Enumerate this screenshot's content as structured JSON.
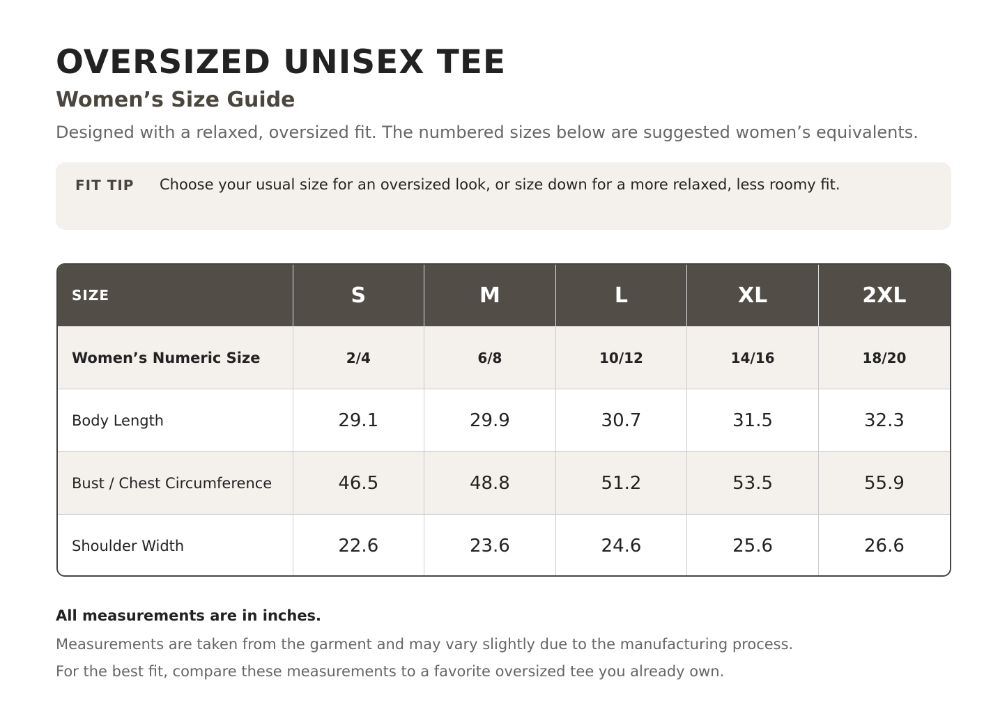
{
  "header": {
    "title": "OVERSIZED UNISEX TEE",
    "subtitle": "Women’s Size Guide",
    "description": "Designed with a relaxed, oversized fit. The numbered sizes below are suggested women’s equivalents."
  },
  "fit_tip": {
    "label": "FIT TIP",
    "text": "Choose your usual size for an oversized look, or size down for a more relaxed, less roomy fit."
  },
  "table": {
    "columns": [
      "SIZE",
      "S",
      "M",
      "L",
      "XL",
      "2XL"
    ],
    "rows": [
      [
        "Women’s Numeric Size",
        "2/4",
        "6/8",
        "10/12",
        "14/16",
        "18/20"
      ],
      [
        "Body Length",
        29.1,
        29.9,
        30.7,
        31.5,
        32.3
      ],
      [
        "Bust / Chest Circumference",
        46.5,
        48.8,
        51.2,
        53.5,
        55.9
      ],
      [
        "Shoulder Width",
        22.6,
        23.6,
        24.6,
        25.6,
        26.6
      ]
    ]
  },
  "notes": {
    "emphasis": "All measurements are in inches.",
    "lines": [
      "Measurements are taken from the garment and may vary slightly due to the manufacturing process.",
      "For the best fit, compare these measurements to a favorite oversized tee you already own."
    ]
  }
}
